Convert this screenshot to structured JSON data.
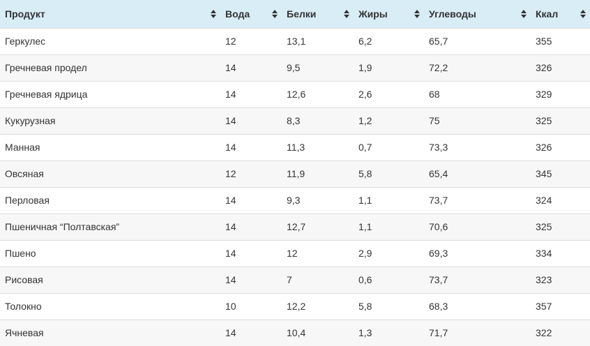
{
  "table": {
    "headers": [
      "Продукт",
      "Вода",
      "Белки",
      "Жиры",
      "Углеводы",
      "Ккал"
    ],
    "rows": [
      [
        "Геркулес",
        "12",
        "13,1",
        "6,2",
        "65,7",
        "355"
      ],
      [
        "Гречневая продел",
        "14",
        "9,5",
        "1,9",
        "72,2",
        "326"
      ],
      [
        "Гречневая ядрица",
        "14",
        "12,6",
        "2,6",
        "68",
        "329"
      ],
      [
        "Кукурузная",
        "14",
        "8,3",
        "1,2",
        "75",
        "325"
      ],
      [
        "Манная",
        "14",
        "11,3",
        "0,7",
        "73,3",
        "326"
      ],
      [
        "Овсяная",
        "12",
        "11,9",
        "5,8",
        "65,4",
        "345"
      ],
      [
        "Перловая",
        "14",
        "9,3",
        "1,1",
        "73,7",
        "324"
      ],
      [
        "Пшеничная “Полтавская”",
        "14",
        "12,7",
        "1,1",
        "70,6",
        "325"
      ],
      [
        "Пшено",
        "14",
        "12",
        "2,9",
        "69,3",
        "334"
      ],
      [
        "Рисовая",
        "14",
        "7",
        "0,6",
        "73,7",
        "323"
      ],
      [
        "Толокно",
        "10",
        "12,2",
        "5,8",
        "68,3",
        "357"
      ],
      [
        "Ячневая",
        "14",
        "10,4",
        "1,3",
        "71,7",
        "322"
      ]
    ]
  },
  "icons": {
    "sort": "sort-icon"
  },
  "colors": {
    "header_bg": "#d9edf7",
    "stripe_bg": "#f7f7f7",
    "border": "#dddddd",
    "text": "#333333"
  }
}
